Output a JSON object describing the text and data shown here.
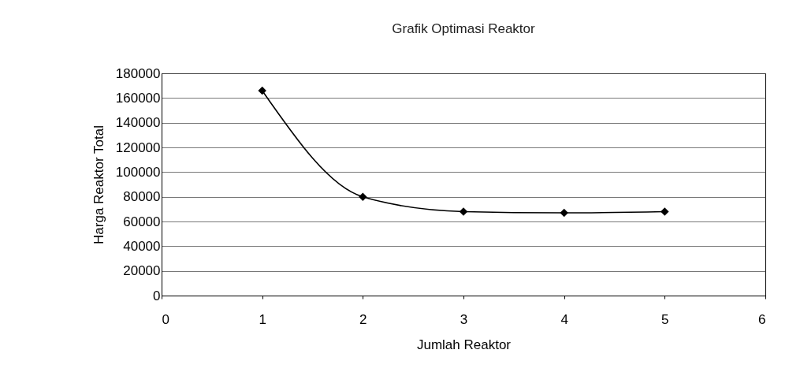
{
  "chart_data": {
    "type": "line",
    "title": "Grafik Optimasi Reaktor",
    "xlabel": "Jumlah Reaktor",
    "ylabel": "Harga Reaktor Total",
    "x": [
      1,
      2,
      3,
      4,
      5
    ],
    "series": [
      {
        "color": "#000000",
        "values": [
          166000,
          80000,
          68000,
          67000,
          68000
        ]
      }
    ],
    "xlim": [
      0,
      6
    ],
    "xticks": [
      0,
      1,
      2,
      3,
      4,
      5,
      6
    ],
    "ylim": [
      0,
      180000
    ],
    "yticks": [
      0,
      20000,
      40000,
      60000,
      80000,
      100000,
      120000,
      140000,
      160000,
      180000
    ],
    "grid": "y",
    "marker": "diamond",
    "line_style": "solid",
    "legend": false
  }
}
